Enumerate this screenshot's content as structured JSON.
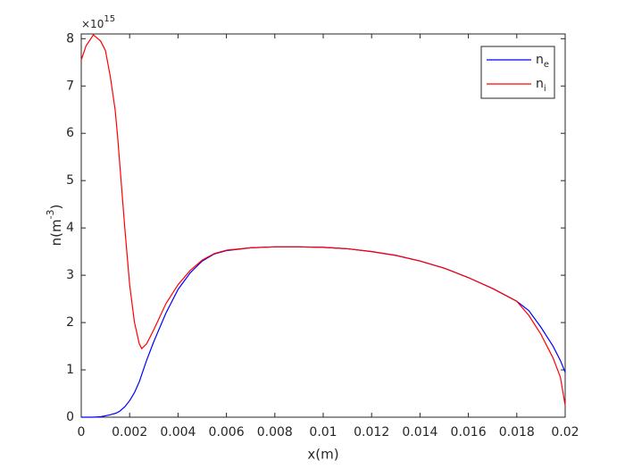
{
  "chart_data": {
    "type": "line",
    "xlabel": "x(m)",
    "ylabel": {
      "text": "n(m",
      "superscript": "-3",
      "suffix": ")"
    },
    "y_exponent": {
      "base": "×10",
      "power": "15"
    },
    "x": [
      0,
      0.0002,
      0.0005,
      0.0008,
      0.001,
      0.0012,
      0.0014,
      0.0015,
      0.0016,
      0.0018,
      0.002,
      0.0022,
      0.0024,
      0.0025,
      0.0027,
      0.003,
      0.0035,
      0.004,
      0.0045,
      0.005,
      0.0055,
      0.006,
      0.007,
      0.008,
      0.009,
      0.01,
      0.011,
      0.012,
      0.013,
      0.014,
      0.015,
      0.016,
      0.017,
      0.018,
      0.0185,
      0.019,
      0.0195,
      0.0198,
      0.02
    ],
    "series": [
      {
        "name": "n",
        "subscript": "e",
        "color": "#0000ff",
        "values": [
          0,
          0,
          0,
          0.01,
          0.03,
          0.05,
          0.08,
          0.1,
          0.13,
          0.22,
          0.35,
          0.52,
          0.75,
          0.9,
          1.2,
          1.6,
          2.2,
          2.7,
          3.05,
          3.3,
          3.45,
          3.52,
          3.58,
          3.6,
          3.6,
          3.59,
          3.56,
          3.5,
          3.42,
          3.3,
          3.15,
          2.95,
          2.72,
          2.45,
          2.25,
          1.9,
          1.5,
          1.2,
          0.95
        ]
      },
      {
        "name": "n",
        "subscript": "i",
        "color": "#ff0000",
        "values": [
          7.55,
          7.85,
          8.08,
          7.95,
          7.75,
          7.2,
          6.5,
          5.95,
          5.3,
          4.0,
          2.8,
          2.0,
          1.55,
          1.45,
          1.55,
          1.85,
          2.4,
          2.8,
          3.1,
          3.32,
          3.46,
          3.53,
          3.58,
          3.6,
          3.6,
          3.59,
          3.56,
          3.5,
          3.42,
          3.3,
          3.15,
          2.95,
          2.72,
          2.45,
          2.15,
          1.75,
          1.25,
          0.85,
          0.25
        ]
      }
    ],
    "xlim": [
      0,
      0.02
    ],
    "xticks": [
      0,
      0.002,
      0.004,
      0.006,
      0.008,
      0.01,
      0.012,
      0.014,
      0.016,
      0.018,
      0.02
    ],
    "ylim": [
      0,
      8.1
    ],
    "yticks": [
      0,
      1,
      2,
      3,
      4,
      5,
      6,
      7,
      8
    ],
    "grid": false,
    "legend": "top-right"
  }
}
